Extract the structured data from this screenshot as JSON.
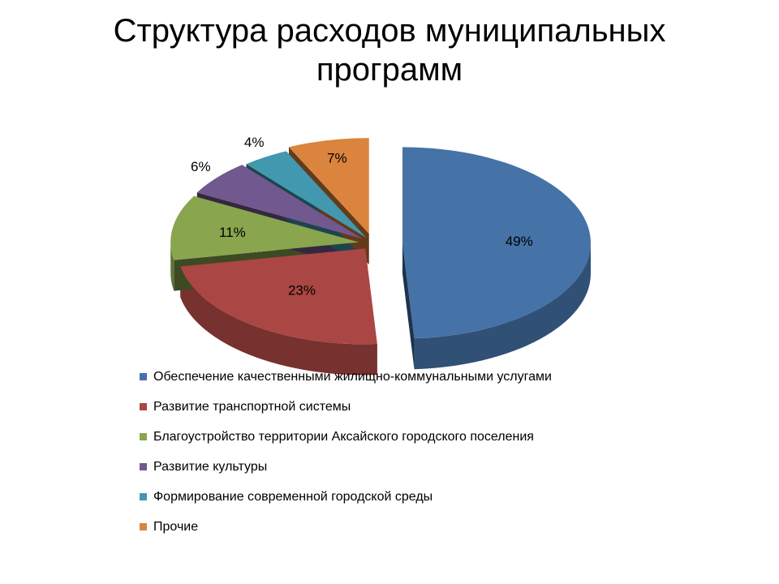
{
  "slide": {
    "title": "Структура расходов муниципальных программ"
  },
  "chart_data": {
    "type": "pie",
    "title": "Структура расходов муниципальных программ",
    "categories": [
      "Обеспечение качественными жилищно-коммунальными услугами",
      "Развитие транспортной системы",
      "Благоустройство территории Аксайского городского поселения",
      "Развитие культуры",
      "Формирование современной городской среды",
      "Прочие"
    ],
    "values": [
      49,
      23,
      11,
      6,
      4,
      7
    ],
    "labels": [
      "49%",
      "23%",
      "11%",
      "6%",
      "4%",
      "7%"
    ],
    "colors": [
      "#4572A7",
      "#AA4643",
      "#89A54E",
      "#71588F",
      "#4198AF",
      "#DB843D"
    ],
    "exploded": true,
    "three_d": true,
    "legend_position": "bottom"
  }
}
